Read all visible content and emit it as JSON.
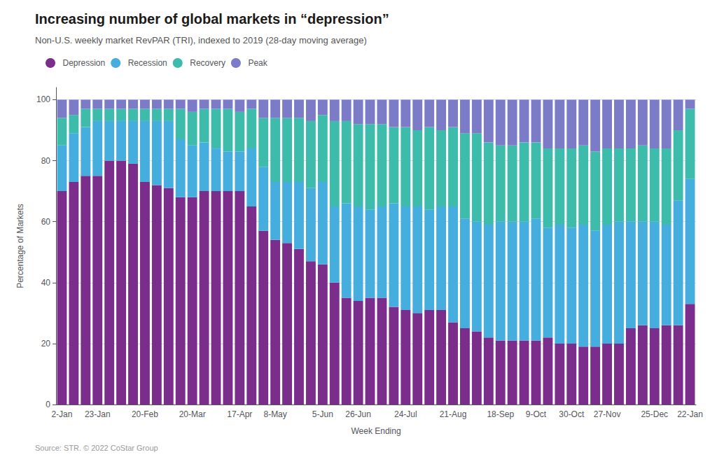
{
  "chart_data": {
    "type": "bar",
    "title": "Increasing number of global markets in “depression”",
    "subtitle": "Non-U.S. weekly market RevPAR (TRI), indexed to 2019 (28-day moving average)",
    "annotations": [
      "Source: STR. © 2022 CoStar Group"
    ],
    "xlabel": "Week Ending",
    "ylabel": "Percentage of Markets",
    "stacked": true,
    "grid": true,
    "legend": "upper left",
    "ylim": [
      0,
      104
    ],
    "yticks": [
      0,
      20,
      40,
      60,
      80,
      100
    ],
    "categories": [
      "2-Jan",
      null,
      null,
      "23-Jan",
      null,
      null,
      null,
      "20-Feb",
      null,
      null,
      null,
      "20-Mar",
      null,
      null,
      null,
      "17-Apr",
      null,
      null,
      "8-May",
      null,
      null,
      null,
      "5-Jun",
      null,
      null,
      "26-Jun",
      null,
      null,
      null,
      "24-Jul",
      null,
      null,
      null,
      "21-Aug",
      null,
      null,
      null,
      "18-Sep",
      null,
      null,
      "9-Oct",
      null,
      null,
      "30-Oct",
      null,
      null,
      "27-Nov",
      null,
      null,
      null,
      "25-Dec",
      null,
      null,
      "22-Jan"
    ],
    "series": [
      {
        "name": "Depression",
        "color": "#7B2D8B",
        "values": [
          70,
          73,
          75,
          75,
          80,
          80,
          79,
          73,
          72,
          71,
          68,
          68,
          70,
          70,
          70,
          70,
          65,
          57,
          54,
          53,
          51,
          47,
          46,
          40,
          35,
          34,
          35,
          35,
          32,
          31,
          30,
          31,
          31,
          27,
          25,
          24,
          22,
          21,
          21,
          21,
          21,
          22,
          20,
          20,
          19,
          19,
          20,
          20,
          25,
          26,
          25,
          26,
          26,
          33
        ]
      },
      {
        "name": "Recession",
        "color": "#45AEDE",
        "values": [
          15,
          16,
          16,
          18,
          13,
          13,
          14,
          20,
          21,
          22,
          19,
          17,
          16,
          14,
          13,
          13,
          19,
          21,
          19,
          20,
          22,
          24,
          27,
          25,
          31,
          31,
          29,
          30,
          34,
          34,
          35,
          33,
          34,
          38,
          36,
          36,
          37,
          39,
          39,
          39,
          40,
          36,
          39,
          38,
          40,
          38,
          39,
          40,
          35,
          34,
          35,
          33,
          41,
          41
        ]
      },
      {
        "name": "Recovery",
        "color": "#3DBBAB",
        "values": [
          9,
          6,
          6,
          4,
          4,
          4,
          4,
          4,
          4,
          4,
          10,
          11,
          11,
          13,
          14,
          13,
          13,
          16,
          21,
          21,
          21,
          22,
          22,
          28,
          27,
          27,
          28,
          27,
          25,
          26,
          25,
          27,
          25,
          26,
          28,
          29,
          27,
          25,
          25,
          26,
          25,
          26,
          25,
          26,
          26,
          26,
          25,
          24,
          24,
          25,
          24,
          25,
          23,
          23
        ]
      },
      {
        "name": "Peak",
        "color": "#7B7BC8",
        "values": [
          6,
          5,
          3,
          3,
          3,
          3,
          3,
          3,
          3,
          3,
          3,
          4,
          3,
          3,
          3,
          4,
          3,
          6,
          6,
          6,
          6,
          7,
          5,
          7,
          7,
          8,
          8,
          8,
          9,
          9,
          10,
          9,
          10,
          9,
          11,
          11,
          14,
          15,
          15,
          14,
          14,
          16,
          16,
          16,
          15,
          17,
          16,
          16,
          16,
          15,
          16,
          16,
          10,
          3
        ]
      }
    ]
  }
}
